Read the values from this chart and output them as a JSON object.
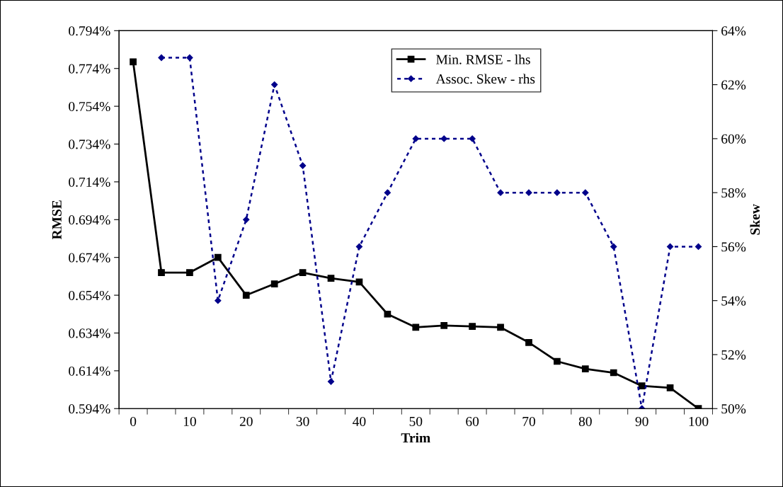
{
  "chart_data": {
    "type": "line",
    "xlabel": "Trim",
    "ylabel": "RMSE",
    "y2label": "Skew",
    "categories": [
      "0",
      null,
      "10",
      null,
      "20",
      null,
      "30",
      null,
      "40",
      null,
      "50",
      null,
      "60",
      null,
      "70",
      null,
      "80",
      null,
      "90",
      null,
      "100"
    ],
    "series": [
      {
        "name": "Min. RMSE - lhs",
        "color": "#000000",
        "marker": "square",
        "line_style": "solid",
        "axis": "y",
        "values": [
          0.7775,
          0.666,
          0.666,
          0.674,
          0.654,
          0.66,
          0.666,
          0.663,
          0.661,
          0.644,
          0.637,
          0.638,
          0.6375,
          0.637,
          0.629,
          0.619,
          0.615,
          0.613,
          0.606,
          0.605,
          0.594
        ]
      },
      {
        "name": "Assoc. Skew - rhs",
        "color": "#00008b",
        "marker": "diamond",
        "line_style": "dotted",
        "axis": "y2",
        "values": [
          null,
          63,
          63,
          54,
          57,
          62,
          59,
          51,
          56,
          58,
          60,
          60,
          60,
          58,
          58,
          58,
          58,
          56,
          50,
          56,
          56
        ]
      }
    ],
    "ylim": [
      0.594,
      0.794
    ],
    "yticks": [
      {
        "value": 0.594,
        "label": "0.594%"
      },
      {
        "value": 0.614,
        "label": "0.614%"
      },
      {
        "value": 0.634,
        "label": "0.634%"
      },
      {
        "value": 0.654,
        "label": "0.654%"
      },
      {
        "value": 0.674,
        "label": "0.674%"
      },
      {
        "value": 0.694,
        "label": "0.694%"
      },
      {
        "value": 0.714,
        "label": "0.714%"
      },
      {
        "value": 0.734,
        "label": "0.734%"
      },
      {
        "value": 0.754,
        "label": "0.754%"
      },
      {
        "value": 0.774,
        "label": "0.774%"
      },
      {
        "value": 0.794,
        "label": "0.794%"
      }
    ],
    "y2lim": [
      50,
      64
    ],
    "y2ticks": [
      {
        "value": 50,
        "label": "50%"
      },
      {
        "value": 52,
        "label": "52%"
      },
      {
        "value": 54,
        "label": "54%"
      },
      {
        "value": 56,
        "label": "56%"
      },
      {
        "value": 58,
        "label": "58%"
      },
      {
        "value": 60,
        "label": "60%"
      },
      {
        "value": 62,
        "label": "62%"
      },
      {
        "value": 64,
        "label": "64%"
      }
    ],
    "grid": false,
    "legend": "top"
  }
}
